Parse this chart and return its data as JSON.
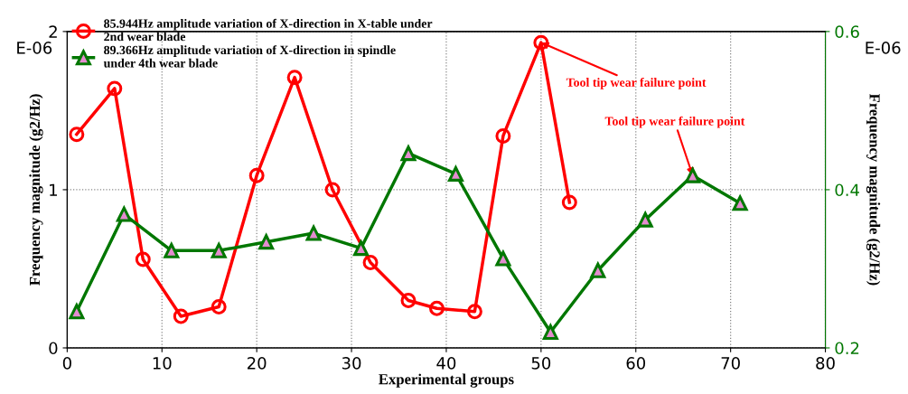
{
  "chart_data": {
    "type": "line",
    "xlabel": "Experimental groups",
    "ylabel": "Frequency magnitude (g2/Hz)",
    "y2label": "Frequency magnitude (g2/Hz)",
    "xlim": [
      0,
      80
    ],
    "xticks": [
      0,
      10,
      20,
      30,
      40,
      50,
      60,
      70,
      80
    ],
    "ylim": [
      0,
      2
    ],
    "yticks": [
      0,
      1,
      2
    ],
    "y2lim": [
      0.2,
      0.6
    ],
    "y2ticks": [
      0.2,
      0.4,
      0.6
    ],
    "grid": true,
    "legend": "top left",
    "line_style": "solid",
    "series": [
      {
        "name": "85.944Hz amplitude variation of X-direction in X-table under\n2nd wear blade",
        "color": "#ff0000",
        "marker": "circle",
        "x": [
          1,
          5,
          8,
          12,
          16,
          20,
          24,
          28,
          32,
          36,
          39,
          43,
          46,
          50,
          53
        ],
        "values": [
          1.35,
          1.64,
          0.56,
          0.2,
          0.26,
          1.09,
          1.71,
          1.0,
          0.54,
          0.3,
          0.25,
          0.23,
          1.34,
          1.93,
          0.92
        ]
      },
      {
        "name": "89.366Hz amplitude variation of X-direction in spindle\nunder 4th wear blade",
        "color": "#007700",
        "marker": "triangle",
        "axis": "y2",
        "x": [
          1,
          6,
          11,
          16,
          21,
          26,
          31,
          36,
          41,
          46,
          51,
          56,
          61,
          66,
          71
        ],
        "values": [
          0.246,
          0.369,
          0.323,
          0.323,
          0.334,
          0.345,
          0.326,
          0.446,
          0.42,
          0.313,
          0.22,
          0.298,
          0.362,
          0.418,
          0.383
        ]
      }
    ],
    "annotations": [
      {
        "text": "Tool tip wear failure point",
        "x": 50,
        "y": 1.93
      },
      {
        "text": "Tool tip wear failure point",
        "x": 66,
        "y": 1.09
      },
      "E-06",
      "E-06"
    ]
  }
}
